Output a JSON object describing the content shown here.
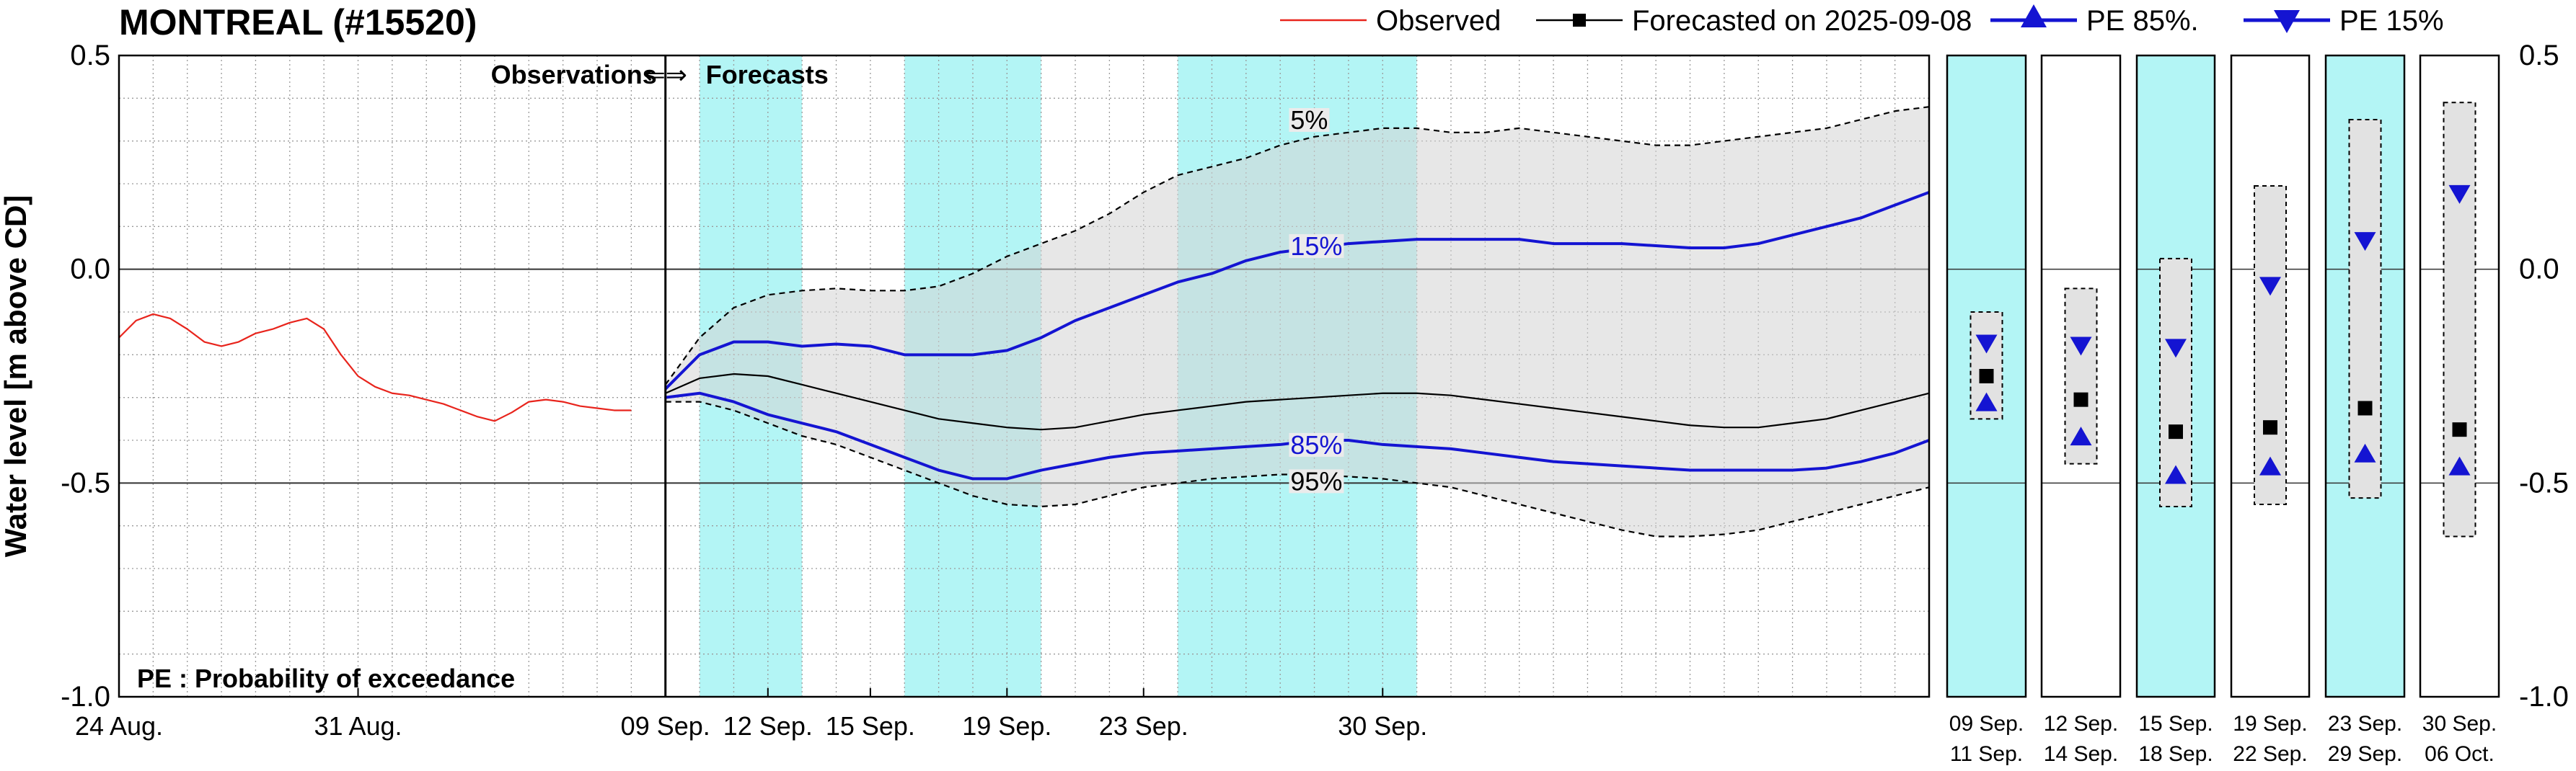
{
  "chart_data": {
    "type": "line",
    "title": "MONTREAL (#15520)",
    "ylabel": "Water level [m above CD]",
    "ylim": [
      -1.0,
      0.5
    ],
    "y_ticks": [
      {
        "value": 0.5,
        "label": "0.5"
      },
      {
        "value": 0.0,
        "label": "0.0"
      },
      {
        "value": -0.5,
        "label": "-0.5"
      },
      {
        "value": -1.0,
        "label": "-1.0"
      }
    ],
    "x_unit": "days since 24 Aug.",
    "xlim": [
      0,
      53
    ],
    "observations_forecasts_day": 16,
    "x_ticks": [
      {
        "day": 0,
        "label": "24 Aug."
      },
      {
        "day": 7,
        "label": "31 Aug."
      },
      {
        "day": 16,
        "label": "09 Sep."
      },
      {
        "day": 19,
        "label": "12 Sep."
      },
      {
        "day": 22,
        "label": "15 Sep."
      },
      {
        "day": 26,
        "label": "19 Sep."
      },
      {
        "day": 30,
        "label": "23 Sep."
      },
      {
        "day": 37,
        "label": "30 Sep."
      }
    ],
    "shaded_periods": [
      [
        17,
        20
      ],
      [
        23,
        27
      ],
      [
        31,
        38
      ]
    ],
    "shade_color": "#b3f5f5",
    "legend": {
      "observed": "Observed",
      "forecasted": "Forecasted on 2025-09-08",
      "pe85": "PE 85%.",
      "pe15": "PE 15%"
    },
    "annotations": {
      "obs_fc": "Observations",
      "arrow": "⇐⇒",
      "fc": "Forecasts",
      "pe_note": "PE : Probability of exceedance"
    },
    "series": [
      {
        "name": "Observed",
        "color": "#e8241c",
        "x": [
          0,
          0.5,
          1,
          1.5,
          2,
          2.5,
          3,
          3.5,
          4,
          4.5,
          5,
          5.5,
          6,
          6.5,
          7,
          7.5,
          8,
          8.5,
          9,
          9.5,
          10,
          10.5,
          11,
          11.5,
          12,
          12.5,
          13,
          13.5,
          14,
          14.5,
          15
        ],
        "y": [
          -0.16,
          -0.12,
          -0.105,
          -0.115,
          -0.14,
          -0.17,
          -0.18,
          -0.17,
          -0.15,
          -0.14,
          -0.125,
          -0.115,
          -0.14,
          -0.2,
          -0.25,
          -0.275,
          -0.29,
          -0.295,
          -0.305,
          -0.315,
          -0.33,
          -0.345,
          -0.355,
          -0.335,
          -0.31,
          -0.305,
          -0.31,
          -0.32,
          -0.325,
          -0.33,
          -0.33
        ]
      },
      {
        "name": "5%",
        "color": "#000000",
        "dashed": true,
        "x": [
          16,
          17,
          18,
          19,
          20,
          21,
          22,
          23,
          24,
          25,
          26,
          27,
          28,
          29,
          30,
          31,
          32,
          33,
          34,
          35,
          36,
          37,
          38,
          39,
          40,
          41,
          42,
          43,
          44,
          45,
          46,
          47,
          48,
          49,
          50,
          51,
          52,
          53
        ],
        "y": [
          -0.27,
          -0.16,
          -0.09,
          -0.06,
          -0.05,
          -0.045,
          -0.05,
          -0.05,
          -0.04,
          -0.01,
          0.03,
          0.06,
          0.09,
          0.13,
          0.18,
          0.22,
          0.24,
          0.26,
          0.29,
          0.31,
          0.32,
          0.33,
          0.33,
          0.32,
          0.32,
          0.33,
          0.32,
          0.31,
          0.3,
          0.29,
          0.29,
          0.3,
          0.31,
          0.32,
          0.33,
          0.35,
          0.37,
          0.38
        ]
      },
      {
        "name": "15%",
        "color": "#1414d2",
        "bold": true,
        "x": [
          16,
          17,
          18,
          19,
          20,
          21,
          22,
          23,
          24,
          25,
          26,
          27,
          28,
          29,
          30,
          31,
          32,
          33,
          34,
          35,
          36,
          37,
          38,
          39,
          40,
          41,
          42,
          43,
          44,
          45,
          46,
          47,
          48,
          49,
          50,
          51,
          52,
          53
        ],
        "y": [
          -0.28,
          -0.2,
          -0.17,
          -0.17,
          -0.18,
          -0.175,
          -0.18,
          -0.2,
          -0.2,
          -0.2,
          -0.19,
          -0.16,
          -0.12,
          -0.09,
          -0.06,
          -0.03,
          -0.01,
          0.02,
          0.04,
          0.05,
          0.06,
          0.065,
          0.07,
          0.07,
          0.07,
          0.07,
          0.06,
          0.06,
          0.06,
          0.055,
          0.05,
          0.05,
          0.06,
          0.08,
          0.1,
          0.12,
          0.15,
          0.18
        ]
      },
      {
        "name": "Forecasted on 2025-09-08",
        "color": "#000000",
        "x": [
          16,
          17,
          18,
          19,
          20,
          21,
          22,
          23,
          24,
          25,
          26,
          27,
          28,
          29,
          30,
          31,
          32,
          33,
          34,
          35,
          36,
          37,
          38,
          39,
          40,
          41,
          42,
          43,
          44,
          45,
          46,
          47,
          48,
          49,
          50,
          51,
          52,
          53
        ],
        "y": [
          -0.29,
          -0.255,
          -0.245,
          -0.25,
          -0.27,
          -0.29,
          -0.31,
          -0.33,
          -0.35,
          -0.36,
          -0.37,
          -0.375,
          -0.37,
          -0.355,
          -0.34,
          -0.33,
          -0.32,
          -0.31,
          -0.305,
          -0.3,
          -0.295,
          -0.29,
          -0.29,
          -0.295,
          -0.305,
          -0.315,
          -0.325,
          -0.335,
          -0.345,
          -0.355,
          -0.365,
          -0.37,
          -0.37,
          -0.36,
          -0.35,
          -0.33,
          -0.31,
          -0.29
        ]
      },
      {
        "name": "85%",
        "color": "#1414d2",
        "bold": true,
        "x": [
          16,
          17,
          18,
          19,
          20,
          21,
          22,
          23,
          24,
          25,
          26,
          27,
          28,
          29,
          30,
          31,
          32,
          33,
          34,
          35,
          36,
          37,
          38,
          39,
          40,
          41,
          42,
          43,
          44,
          45,
          46,
          47,
          48,
          49,
          50,
          51,
          52,
          53
        ],
        "y": [
          -0.3,
          -0.29,
          -0.31,
          -0.34,
          -0.36,
          -0.38,
          -0.41,
          -0.44,
          -0.47,
          -0.49,
          -0.49,
          -0.47,
          -0.455,
          -0.44,
          -0.43,
          -0.425,
          -0.42,
          -0.415,
          -0.41,
          -0.4,
          -0.4,
          -0.41,
          -0.415,
          -0.42,
          -0.43,
          -0.44,
          -0.45,
          -0.455,
          -0.46,
          -0.465,
          -0.47,
          -0.47,
          -0.47,
          -0.47,
          -0.465,
          -0.45,
          -0.43,
          -0.4
        ]
      },
      {
        "name": "95%",
        "color": "#000000",
        "dashed": true,
        "x": [
          16,
          17,
          18,
          19,
          20,
          21,
          22,
          23,
          24,
          25,
          26,
          27,
          28,
          29,
          30,
          31,
          32,
          33,
          34,
          35,
          36,
          37,
          38,
          39,
          40,
          41,
          42,
          43,
          44,
          45,
          46,
          47,
          48,
          49,
          50,
          51,
          52,
          53
        ],
        "y": [
          -0.31,
          -0.31,
          -0.33,
          -0.36,
          -0.39,
          -0.41,
          -0.44,
          -0.47,
          -0.5,
          -0.53,
          -0.55,
          -0.555,
          -0.55,
          -0.53,
          -0.51,
          -0.5,
          -0.49,
          -0.485,
          -0.48,
          -0.48,
          -0.485,
          -0.49,
          -0.5,
          -0.51,
          -0.53,
          -0.55,
          -0.57,
          -0.59,
          -0.61,
          -0.625,
          -0.625,
          -0.62,
          -0.61,
          -0.59,
          -0.57,
          -0.55,
          -0.53,
          -0.51
        ]
      }
    ],
    "curve_labels": [
      {
        "text": "5%",
        "x": 34.3,
        "y": 0.35,
        "color": "#000000"
      },
      {
        "text": "15%",
        "x": 34.3,
        "y": 0.055,
        "color": "#1414d2"
      },
      {
        "text": "85%",
        "x": 34.3,
        "y": -0.41,
        "color": "#1414d2"
      },
      {
        "text": "95%",
        "x": 34.3,
        "y": -0.495,
        "color": "#000000"
      }
    ],
    "periods": [
      {
        "label_start": "09 Sep.",
        "label_end": "11 Sep.",
        "shaded": true,
        "pe15": -0.175,
        "forecast": -0.25,
        "pe85": -0.31,
        "range": [
          -0.35,
          -0.1
        ]
      },
      {
        "label_start": "12 Sep.",
        "label_end": "14 Sep.",
        "shaded": false,
        "pe15": -0.18,
        "forecast": -0.305,
        "pe85": -0.39,
        "range": [
          -0.455,
          -0.045
        ]
      },
      {
        "label_start": "15 Sep.",
        "label_end": "18 Sep.",
        "shaded": true,
        "pe15": -0.185,
        "forecast": -0.38,
        "pe85": -0.48,
        "range": [
          -0.555,
          0.025
        ]
      },
      {
        "label_start": "19 Sep.",
        "label_end": "22 Sep.",
        "shaded": false,
        "pe15": -0.04,
        "forecast": -0.37,
        "pe85": -0.46,
        "range": [
          -0.55,
          0.195
        ]
      },
      {
        "label_start": "23 Sep.",
        "label_end": "29 Sep.",
        "shaded": true,
        "pe15": 0.065,
        "forecast": -0.325,
        "pe85": -0.43,
        "range": [
          -0.535,
          0.35
        ]
      },
      {
        "label_start": "30 Sep.",
        "label_end": "06 Oct.",
        "shaded": false,
        "pe15": 0.175,
        "forecast": -0.375,
        "pe85": -0.46,
        "range": [
          -0.625,
          0.39
        ]
      }
    ]
  }
}
